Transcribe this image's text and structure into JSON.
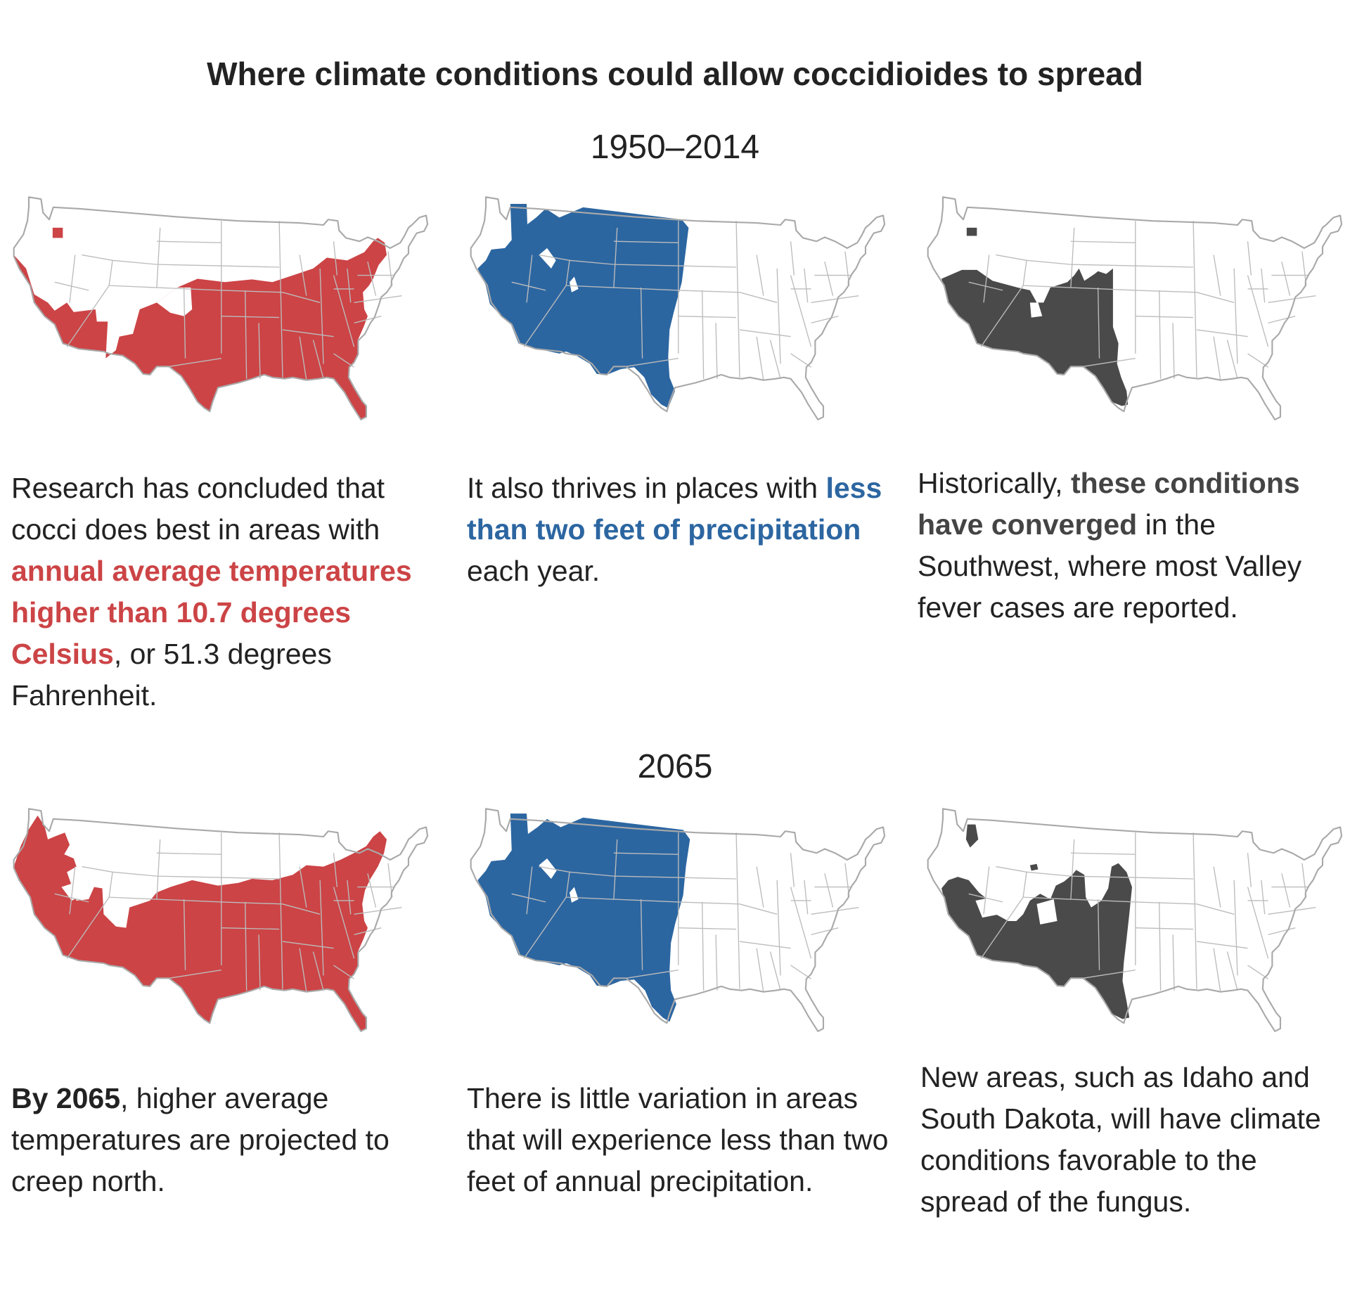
{
  "title": "Where climate conditions could allow coccidioides to spread",
  "periods": [
    "1950–2014",
    "2065"
  ],
  "colors": {
    "temperature": "#cc4446",
    "precipitation": "#2c66a1",
    "combined": "#4a4a4a",
    "outline": "#a9a9a9"
  },
  "maps": [
    {
      "period": "1950–2014",
      "layer": "temperature",
      "color": "#cc4446",
      "captions": [
        {
          "text": "Research has concluded that cocci does best in areas with "
        },
        {
          "text": "annual average temperatures higher than 10.7 degrees Celsius",
          "style": "hl-red"
        },
        {
          "text": ", or 51.3 degrees Fahrenheit."
        }
      ]
    },
    {
      "period": "1950–2014",
      "layer": "precipitation",
      "color": "#2c66a1",
      "captions": [
        {
          "text": "It also thrives in places with "
        },
        {
          "text": "less than two feet of precipitation",
          "style": "hl-blue"
        },
        {
          "text": " each year."
        }
      ]
    },
    {
      "period": "1950–2014",
      "layer": "combined",
      "color": "#4a4a4a",
      "captions": [
        {
          "text": "Historically, "
        },
        {
          "text": "these conditions have converged",
          "style": "hl-dark"
        },
        {
          "text": " in the Southwest, where most Valley fever cases are reported."
        }
      ]
    },
    {
      "period": "2065",
      "layer": "temperature",
      "color": "#cc4446",
      "captions": [
        {
          "text": "By 2065",
          "style": "hl-black"
        },
        {
          "text": ", higher average temperatures are projected to creep north."
        }
      ]
    },
    {
      "period": "2065",
      "layer": "precipitation",
      "color": "#2c66a1",
      "captions": [
        {
          "text": "There is little variation in areas that will experience less than two feet of annual precipitation."
        }
      ]
    },
    {
      "period": "2065",
      "layer": "combined",
      "color": "#4a4a4a",
      "captions": [
        {
          "text": "New areas, such as Idaho and South Dakota, will have climate conditions favorable to the spread of the fungus."
        }
      ]
    }
  ]
}
